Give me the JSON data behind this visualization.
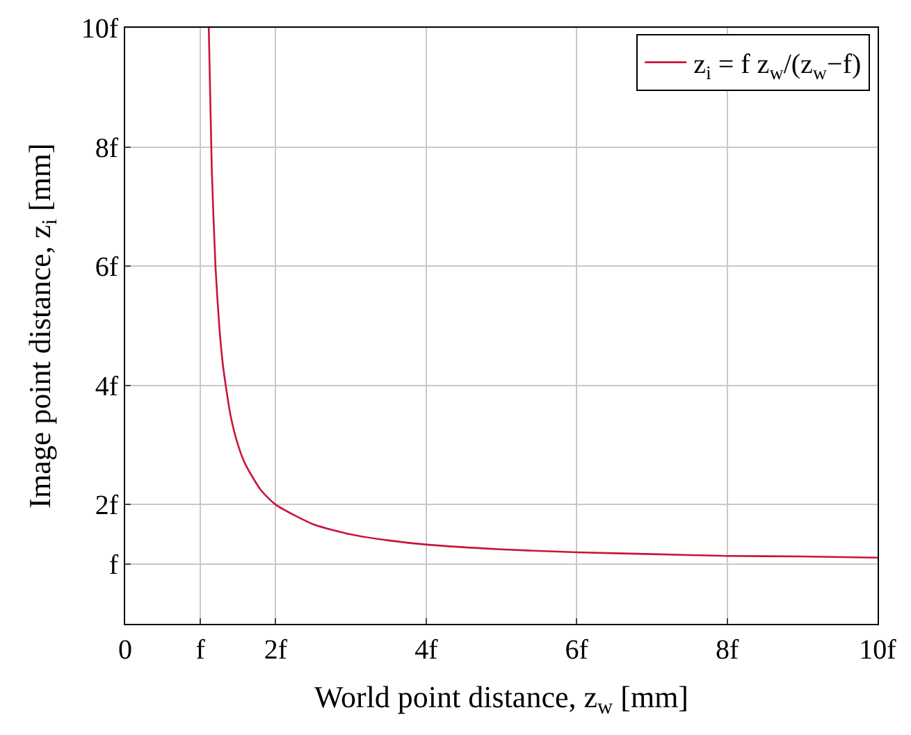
{
  "chart_data": {
    "type": "line",
    "xlabel": "World point distance, z$_{w}$ [mm]",
    "ylabel": "Image point distance, z$_{i}$ [mm]",
    "x": [
      1.111,
      1.15,
      1.2,
      1.25,
      1.3,
      1.4,
      1.5,
      1.6,
      1.8,
      2,
      2.5,
      3,
      3.5,
      4,
      5,
      6,
      7,
      8,
      9,
      10
    ],
    "series": [
      {
        "name": "z$_{i}$ = f z$_{w}$/(z$_{w}$−f)",
        "color": "#c8143c",
        "values": [
          10.0,
          7.67,
          6.0,
          5.0,
          4.33,
          3.5,
          3.0,
          2.67,
          2.25,
          2.0,
          1.67,
          1.5,
          1.4,
          1.33,
          1.25,
          1.2,
          1.17,
          1.14,
          1.13,
          1.11
        ]
      }
    ],
    "xlim": [
      0,
      10
    ],
    "ylim": [
      0,
      10
    ],
    "xticks": [
      0,
      {
        "value": 1,
        "label": "f"
      },
      {
        "value": 2,
        "label": "2f"
      },
      {
        "value": 4,
        "label": "4f"
      },
      {
        "value": 6,
        "label": "6f"
      },
      {
        "value": 8,
        "label": "8f"
      },
      {
        "value": 10,
        "label": "10f"
      }
    ],
    "yticks": [
      {
        "value": 1,
        "label": "f"
      },
      {
        "value": 2,
        "label": "2f"
      },
      {
        "value": 4,
        "label": "4f"
      },
      {
        "value": 6,
        "label": "6f"
      },
      {
        "value": 8,
        "label": "8f"
      },
      {
        "value": 10,
        "label": "10f"
      }
    ],
    "grid": true,
    "legend": "top right",
    "marker": "none",
    "line_style": "solid"
  }
}
